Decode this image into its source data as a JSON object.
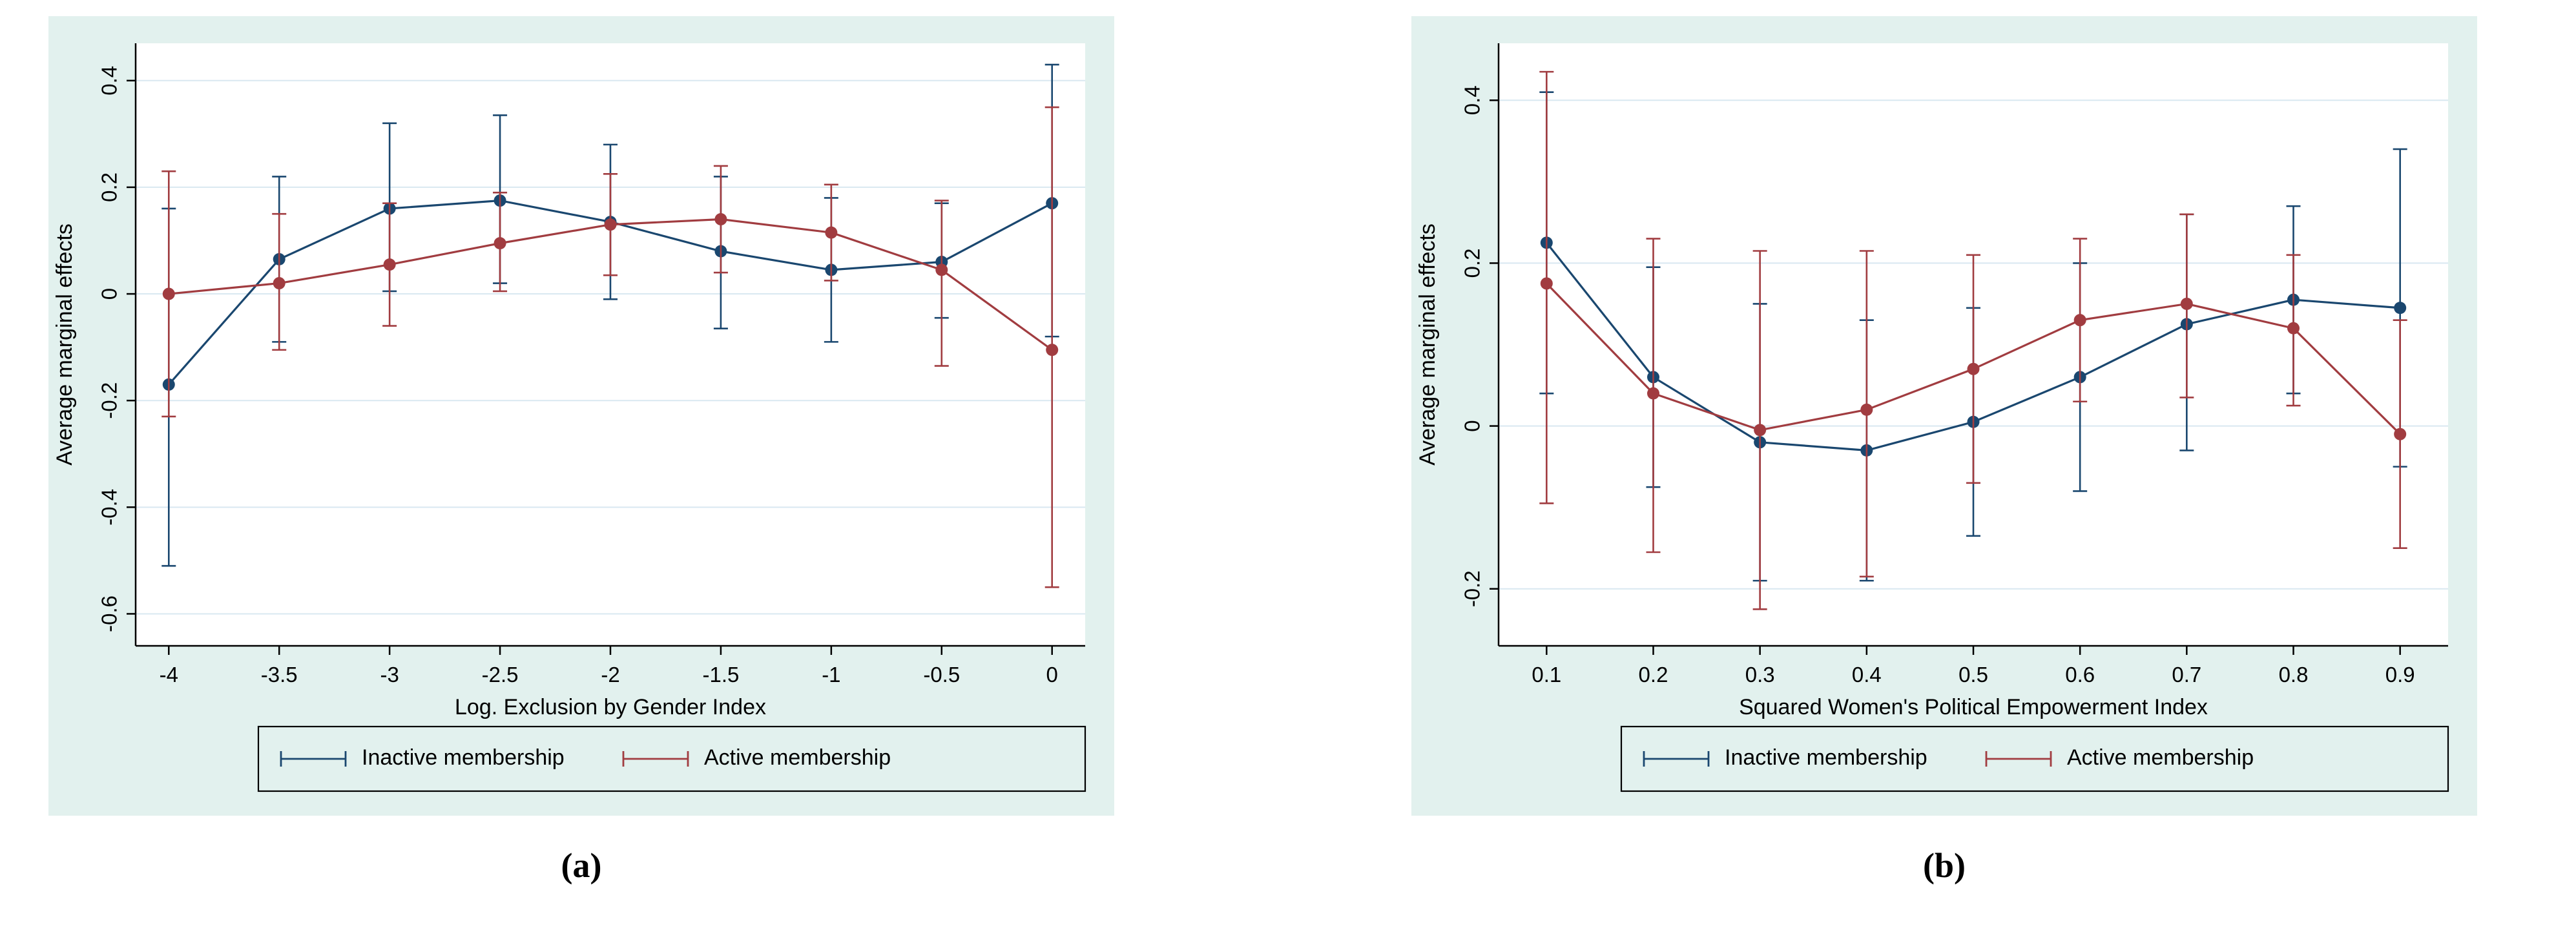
{
  "page": {
    "background": "#ffffff"
  },
  "colors": {
    "panel_background": "#e2f1ee",
    "plot_background": "#ffffff",
    "grid": "#d9e8f1",
    "axis": "#000000",
    "text": "#000000",
    "inactive": "#1a476f",
    "active": "#a13c40"
  },
  "legend": {
    "inactive_label": "Inactive membership",
    "active_label": "Active membership"
  },
  "chart_data": [
    {
      "id": "a",
      "type": "line",
      "panel_label": "(a)",
      "xlabel": "Log. Exclusion by Gender Index",
      "ylabel": "Average marginal effects",
      "xlim": [
        -4.15,
        0.15
      ],
      "ylim": [
        -0.66,
        0.47
      ],
      "grid": true,
      "legend_position": "bottom",
      "xticks": [
        -4,
        -3.5,
        -3,
        -2.5,
        -2,
        -1.5,
        -1,
        -0.5,
        0
      ],
      "xtick_labels": [
        "-4",
        "-3.5",
        "-3",
        "-2.5",
        "-2",
        "-1.5",
        "-1",
        "-0.5",
        "0"
      ],
      "yticks": [
        -0.6,
        -0.4,
        -0.2,
        0,
        0.2,
        0.4
      ],
      "ytick_labels": [
        "-0.6",
        "-0.4",
        "-0.2",
        "0",
        "0.2",
        "0.4"
      ],
      "x": [
        -4,
        -3.5,
        -3,
        -2.5,
        -2,
        -1.5,
        -1,
        -0.5,
        0
      ],
      "series": [
        {
          "name": "Inactive membership",
          "color_key": "inactive",
          "y": [
            -0.17,
            0.065,
            0.16,
            0.175,
            0.135,
            0.08,
            0.045,
            0.06,
            0.17
          ],
          "ci_low": [
            -0.51,
            -0.09,
            0.005,
            0.02,
            -0.01,
            -0.065,
            -0.09,
            -0.045,
            -0.08
          ],
          "ci_high": [
            0.16,
            0.22,
            0.32,
            0.335,
            0.28,
            0.22,
            0.18,
            0.17,
            0.43
          ]
        },
        {
          "name": "Active membership",
          "color_key": "active",
          "y": [
            0.0,
            0.02,
            0.055,
            0.095,
            0.13,
            0.14,
            0.115,
            0.045,
            -0.105
          ],
          "ci_low": [
            -0.23,
            -0.105,
            -0.06,
            0.005,
            0.035,
            0.04,
            0.025,
            -0.135,
            -0.55
          ],
          "ci_high": [
            0.23,
            0.15,
            0.17,
            0.19,
            0.225,
            0.24,
            0.205,
            0.175,
            0.35
          ]
        }
      ]
    },
    {
      "id": "b",
      "type": "line",
      "panel_label": "(b)",
      "xlabel": "Squared Women's Political Empowerment Index",
      "ylabel": "Average marginal effects",
      "xlim": [
        0.055,
        0.945
      ],
      "ylim": [
        -0.27,
        0.47
      ],
      "grid": true,
      "legend_position": "bottom",
      "xticks": [
        0.1,
        0.2,
        0.3,
        0.4,
        0.5,
        0.6,
        0.7,
        0.8,
        0.9
      ],
      "xtick_labels": [
        "0.1",
        "0.2",
        "0.3",
        "0.4",
        "0.5",
        "0.6",
        "0.7",
        "0.8",
        "0.9"
      ],
      "yticks": [
        -0.2,
        0,
        0.2,
        0.4
      ],
      "ytick_labels": [
        "-0.2",
        "0",
        "0.2",
        "0.4"
      ],
      "x": [
        0.1,
        0.2,
        0.3,
        0.4,
        0.5,
        0.6,
        0.7,
        0.8,
        0.9
      ],
      "series": [
        {
          "name": "Inactive membership",
          "color_key": "inactive",
          "y": [
            0.225,
            0.06,
            -0.02,
            -0.03,
            0.005,
            0.06,
            0.125,
            0.155,
            0.145
          ],
          "ci_low": [
            0.04,
            -0.075,
            -0.19,
            -0.19,
            -0.135,
            -0.08,
            -0.03,
            0.04,
            -0.05
          ],
          "ci_high": [
            0.41,
            0.195,
            0.15,
            0.13,
            0.145,
            0.2,
            0.26,
            0.27,
            0.34
          ]
        },
        {
          "name": "Active membership",
          "color_key": "active",
          "y": [
            0.175,
            0.04,
            -0.005,
            0.02,
            0.07,
            0.13,
            0.15,
            0.12,
            -0.01
          ],
          "ci_low": [
            -0.095,
            -0.155,
            -0.225,
            -0.185,
            -0.07,
            0.03,
            0.035,
            0.025,
            -0.15
          ],
          "ci_high": [
            0.435,
            0.23,
            0.215,
            0.215,
            0.21,
            0.23,
            0.26,
            0.21,
            0.13
          ]
        }
      ]
    }
  ]
}
